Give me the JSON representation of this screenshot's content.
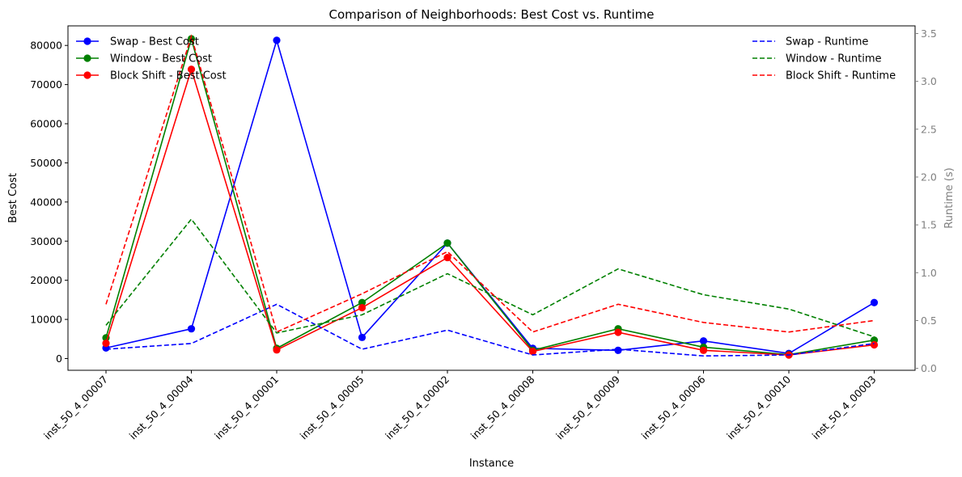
{
  "chart_data": {
    "type": "line",
    "title": "Comparison of Neighborhoods: Best Cost vs. Runtime",
    "xlabel": "Instance",
    "ylabel": "Best Cost",
    "ylabel_right": "Runtime (s)",
    "categories": [
      "inst_50_4_00007",
      "inst_50_4_00004",
      "inst_50_4_00001",
      "inst_50_4_00005",
      "inst_50_4_00002",
      "inst_50_4_00008",
      "inst_50_4_00009",
      "inst_50_4_00006",
      "inst_50_4_00010",
      "inst_50_4_00003"
    ],
    "ylim": [
      -3000,
      85000
    ],
    "ylim_right": [
      -0.02,
      3.58
    ],
    "yticks": [
      0,
      10000,
      20000,
      30000,
      40000,
      50000,
      60000,
      70000,
      80000
    ],
    "yticks_right": [
      "0.0",
      "0.5",
      "1.0",
      "1.5",
      "2.0",
      "2.5",
      "3.0",
      "3.5"
    ],
    "series": [
      {
        "name": "Swap - Best Cost",
        "axis": "left",
        "color": "#0000ff",
        "style": "solid-marker",
        "values": [
          2700,
          7600,
          81300,
          5400,
          29500,
          2600,
          2100,
          4500,
          1300,
          14300
        ]
      },
      {
        "name": "Window - Best Cost",
        "axis": "left",
        "color": "#008000",
        "style": "solid-marker",
        "values": [
          5300,
          81700,
          2600,
          14300,
          29500,
          2100,
          7600,
          2900,
          1000,
          4700
        ]
      },
      {
        "name": "Block Shift - Best Cost",
        "axis": "left",
        "color": "#ff0000",
        "style": "solid-marker",
        "values": [
          3900,
          73900,
          2200,
          13000,
          25800,
          1800,
          6700,
          2100,
          900,
          3500
        ]
      },
      {
        "name": "Swap - Runtime",
        "axis": "right",
        "color": "#0000ff",
        "style": "dashed",
        "values": [
          0.2,
          0.26,
          0.67,
          0.2,
          0.4,
          0.14,
          0.2,
          0.13,
          0.14,
          0.26
        ]
      },
      {
        "name": "Window - Runtime",
        "axis": "right",
        "color": "#008000",
        "style": "dashed",
        "values": [
          0.45,
          1.56,
          0.37,
          0.56,
          0.99,
          0.56,
          1.04,
          0.77,
          0.62,
          0.33
        ]
      },
      {
        "name": "Block Shift - Runtime",
        "axis": "right",
        "color": "#ff0000",
        "style": "dashed",
        "values": [
          0.67,
          3.47,
          0.38,
          0.78,
          1.22,
          0.38,
          0.67,
          0.48,
          0.38,
          0.5
        ]
      }
    ],
    "legend_left_placement": "top-left",
    "legend_right_placement": "top-right",
    "grid": false
  }
}
